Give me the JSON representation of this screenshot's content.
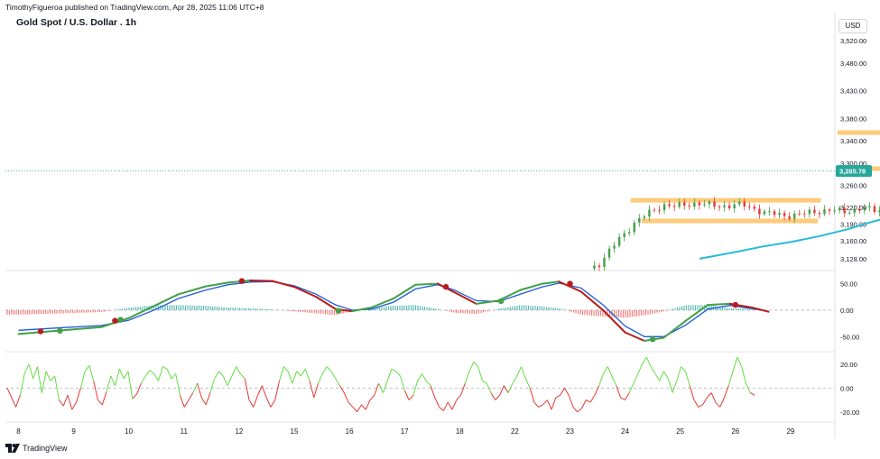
{
  "header": {
    "published": "TimothyFigueroa published on TradingView.com, Apr 28, 2025 11:06 UTC+8",
    "title": "Gold Spot / U.S. Dollar . 1h",
    "currency": "USD",
    "brand": "TradingView"
  },
  "colors": {
    "up": "#43a047",
    "down": "#e53935",
    "ma": "#26bcd4",
    "zone": "#ffca7a",
    "osc_fast": "#43a047",
    "osc_slow": "#1e5bd6",
    "osc_down": "#b71c1c",
    "hist_pos": "#26a69a",
    "hist_neg": "#ef5350",
    "rsi_up": "#66dd44",
    "rsi_down": "#e53935"
  },
  "chart_data": [
    {
      "type": "candlestick",
      "name": "price",
      "x_ticks": [
        "8",
        "9",
        "10",
        "11",
        "12",
        "15",
        "16",
        "17",
        "18",
        "22",
        "23",
        "24",
        "25",
        "26",
        "29"
      ],
      "y_ticks": [
        "3,520.00",
        "3,480.00",
        "3,430.00",
        "3,380.00",
        "3,340.00",
        "3,300.00",
        "3,260.00",
        "3,220.00",
        "3,190.00",
        "3,160.00",
        "3,128.00"
      ],
      "y_range": [
        3110,
        3535
      ],
      "last_price": "3,285.78",
      "close_path": [
        [
          10.35,
          3110
        ],
        [
          10.55,
          3120
        ],
        [
          10.7,
          3140
        ],
        [
          10.9,
          3165
        ],
        [
          11.2,
          3195
        ],
        [
          11.45,
          3212
        ],
        [
          11.7,
          3225
        ],
        [
          11.9,
          3222
        ],
        [
          12.3,
          3228
        ],
        [
          12.7,
          3222
        ],
        [
          13.1,
          3226
        ],
        [
          13.5,
          3212
        ],
        [
          13.9,
          3205
        ],
        [
          14.3,
          3210
        ],
        [
          14.7,
          3216
        ],
        [
          15.0,
          3212
        ],
        [
          15.3,
          3220
        ],
        [
          15.55,
          3214
        ],
        [
          15.85,
          3220
        ],
        [
          16.0,
          3228
        ],
        [
          16.15,
          3245
        ],
        [
          16.3,
          3262
        ],
        [
          16.5,
          3278
        ],
        [
          16.7,
          3295
        ],
        [
          16.9,
          3305
        ],
        [
          17.1,
          3322
        ],
        [
          17.35,
          3338
        ],
        [
          17.55,
          3325
        ],
        [
          17.75,
          3315
        ],
        [
          17.95,
          3325
        ],
        [
          18.15,
          3335
        ],
        [
          18.35,
          3352
        ],
        [
          18.6,
          3378
        ],
        [
          18.9,
          3392
        ],
        [
          19.3,
          3412
        ],
        [
          19.7,
          3428
        ],
        [
          20.0,
          3450
        ],
        [
          20.2,
          3478
        ],
        [
          20.35,
          3495
        ],
        [
          20.5,
          3470
        ],
        [
          20.7,
          3445
        ],
        [
          20.9,
          3405
        ],
        [
          21.1,
          3362
        ],
        [
          21.25,
          3345
        ],
        [
          21.45,
          3325
        ],
        [
          21.65,
          3310
        ],
        [
          21.85,
          3292
        ],
        [
          22.05,
          3290
        ],
        [
          22.25,
          3318
        ],
        [
          22.5,
          3338
        ],
        [
          22.8,
          3328
        ],
        [
          23.05,
          3345
        ],
        [
          23.25,
          3362
        ],
        [
          23.45,
          3335
        ],
        [
          23.65,
          3305
        ],
        [
          23.85,
          3295
        ],
        [
          24.05,
          3290
        ],
        [
          24.25,
          3282
        ],
        [
          24.45,
          3298
        ],
        [
          24.6,
          3318
        ],
        [
          24.75,
          3296
        ],
        [
          24.87,
          3285.78
        ]
      ],
      "ma_path": [
        [
          12.35,
          3128
        ],
        [
          13.0,
          3140
        ],
        [
          13.5,
          3150
        ],
        [
          14.0,
          3158
        ],
        [
          14.5,
          3168
        ],
        [
          15.0,
          3180
        ],
        [
          15.5,
          3195
        ],
        [
          16.0,
          3208
        ],
        [
          16.5,
          3218
        ],
        [
          17.0,
          3228
        ],
        [
          17.5,
          3240
        ],
        [
          18.0,
          3254
        ],
        [
          18.5,
          3265
        ],
        [
          19.0,
          3272
        ],
        [
          19.5,
          3280
        ],
        [
          20.0,
          3287
        ],
        [
          20.5,
          3291
        ],
        [
          21.0,
          3294
        ],
        [
          21.5,
          3297
        ],
        [
          22.0,
          3299
        ],
        [
          22.5,
          3300
        ],
        [
          23.0,
          3301
        ],
        [
          23.5,
          3302
        ],
        [
          24.0,
          3302
        ],
        [
          24.4,
          3301
        ],
        [
          24.87,
          3300
        ]
      ],
      "zones": [
        {
          "x": [
            11.1,
            14.55
          ],
          "y": 3233
        },
        {
          "x": [
            11.3,
            14.5
          ],
          "y": 3196
        },
        {
          "x": [
            19.5,
            21.2
          ],
          "y": 3490
        },
        {
          "x": [
            14.85,
            24.7
          ],
          "y": 3355
        },
        {
          "x": [
            15.2,
            24.7
          ],
          "y": 3290
        }
      ]
    },
    {
      "type": "line",
      "name": "oscillator",
      "y_ticks": [
        "50.00",
        "0.00",
        "-50.00"
      ],
      "y_range": [
        -75,
        68
      ],
      "fast": [
        [
          0,
          -45
        ],
        [
          0.8,
          -38
        ],
        [
          1.5,
          -32
        ],
        [
          2.0,
          -15
        ],
        [
          2.5,
          10
        ],
        [
          2.9,
          30
        ],
        [
          3.4,
          45
        ],
        [
          3.8,
          52
        ],
        [
          4.2,
          56
        ],
        [
          4.6,
          55
        ],
        [
          5.0,
          44
        ],
        [
          5.4,
          25
        ],
        [
          5.75,
          2
        ],
        [
          6.05,
          -2
        ],
        [
          6.4,
          5
        ],
        [
          6.8,
          22
        ],
        [
          7.2,
          48
        ],
        [
          7.6,
          50
        ],
        [
          7.9,
          34
        ],
        [
          8.3,
          12
        ],
        [
          8.7,
          18
        ],
        [
          9.1,
          38
        ],
        [
          9.5,
          50
        ],
        [
          9.8,
          54
        ],
        [
          10.2,
          35
        ],
        [
          10.6,
          0
        ],
        [
          11.0,
          -42
        ],
        [
          11.35,
          -58
        ],
        [
          11.7,
          -52
        ],
        [
          12.1,
          -20
        ],
        [
          12.5,
          10
        ],
        [
          12.9,
          12
        ],
        [
          13.3,
          5
        ],
        [
          13.6,
          -3
        ]
      ],
      "slow": [
        [
          0,
          -38
        ],
        [
          0.8,
          -33
        ],
        [
          1.5,
          -29
        ],
        [
          2.0,
          -19
        ],
        [
          2.5,
          2
        ],
        [
          2.9,
          22
        ],
        [
          3.4,
          38
        ],
        [
          3.8,
          48
        ],
        [
          4.2,
          53
        ],
        [
          4.6,
          54
        ],
        [
          5.0,
          46
        ],
        [
          5.4,
          30
        ],
        [
          5.75,
          10
        ],
        [
          6.05,
          0
        ],
        [
          6.4,
          2
        ],
        [
          6.8,
          15
        ],
        [
          7.2,
          40
        ],
        [
          7.6,
          48
        ],
        [
          7.9,
          38
        ],
        [
          8.3,
          18
        ],
        [
          8.7,
          16
        ],
        [
          9.1,
          30
        ],
        [
          9.5,
          44
        ],
        [
          9.8,
          51
        ],
        [
          10.2,
          42
        ],
        [
          10.6,
          10
        ],
        [
          11.0,
          -30
        ],
        [
          11.35,
          -50
        ],
        [
          11.7,
          -50
        ],
        [
          12.1,
          -28
        ],
        [
          12.5,
          2
        ],
        [
          12.9,
          9
        ],
        [
          13.3,
          3
        ],
        [
          13.6,
          -2
        ]
      ],
      "markers": [
        {
          "x": 0.4,
          "y": -40,
          "dir": "down"
        },
        {
          "x": 0.75,
          "y": -39,
          "dir": "up"
        },
        {
          "x": 1.75,
          "y": -20,
          "dir": "down"
        },
        {
          "x": 1.85,
          "y": -18,
          "dir": "up"
        },
        {
          "x": 4.05,
          "y": 55,
          "dir": "down"
        },
        {
          "x": 5.8,
          "y": -1,
          "dir": "up"
        },
        {
          "x": 7.75,
          "y": 44,
          "dir": "down"
        },
        {
          "x": 8.75,
          "y": 17,
          "dir": "up"
        },
        {
          "x": 10.0,
          "y": 50,
          "dir": "down"
        },
        {
          "x": 11.5,
          "y": -55,
          "dir": "up"
        },
        {
          "x": 13.0,
          "y": 10,
          "dir": "down"
        }
      ]
    },
    {
      "type": "line",
      "name": "momentum",
      "y_ticks": [
        "20.00",
        "0.00",
        "-20.00"
      ],
      "y_range": [
        -27,
        29
      ],
      "values": [
        0,
        -8,
        -16,
        -6,
        12,
        20,
        8,
        18,
        -4,
        14,
        6,
        10,
        -10,
        -15,
        -6,
        -18,
        -12,
        0,
        14,
        19,
        6,
        -10,
        -14,
        -3,
        10,
        2,
        16,
        8,
        14,
        -9,
        -5,
        4,
        10,
        15,
        12,
        6,
        18,
        16,
        8,
        12,
        -6,
        -16,
        -10,
        -4,
        4,
        -8,
        -14,
        -4,
        8,
        14,
        10,
        2,
        10,
        18,
        12,
        8,
        -10,
        -16,
        -6,
        2,
        -8,
        -16,
        -10,
        6,
        18,
        14,
        4,
        14,
        10,
        16,
        6,
        -8,
        4,
        12,
        18,
        14,
        8,
        2,
        -4,
        -12,
        -16,
        -20,
        -14,
        -18,
        -10,
        -6,
        4,
        -4,
        6,
        16,
        14,
        10,
        -2,
        -10,
        -6,
        6,
        12,
        6,
        2,
        -8,
        -16,
        -19,
        -12,
        -18,
        -10,
        -6,
        4,
        14,
        22,
        18,
        6,
        4,
        -4,
        -10,
        -6,
        2,
        -4,
        4,
        10,
        18,
        8,
        0,
        -12,
        -16,
        -14,
        -10,
        -18,
        -8,
        -6,
        0,
        -6,
        -16,
        -20,
        -17,
        -10,
        -12,
        -6,
        2,
        12,
        18,
        10,
        2,
        -8,
        -10,
        -4,
        4,
        12,
        20,
        26,
        18,
        12,
        6,
        14,
        8,
        -4,
        6,
        18,
        14,
        2,
        -10,
        -16,
        -14,
        -8,
        -4,
        -12,
        -16,
        -8,
        2,
        14,
        26,
        18,
        4,
        -4,
        -6
      ]
    }
  ]
}
